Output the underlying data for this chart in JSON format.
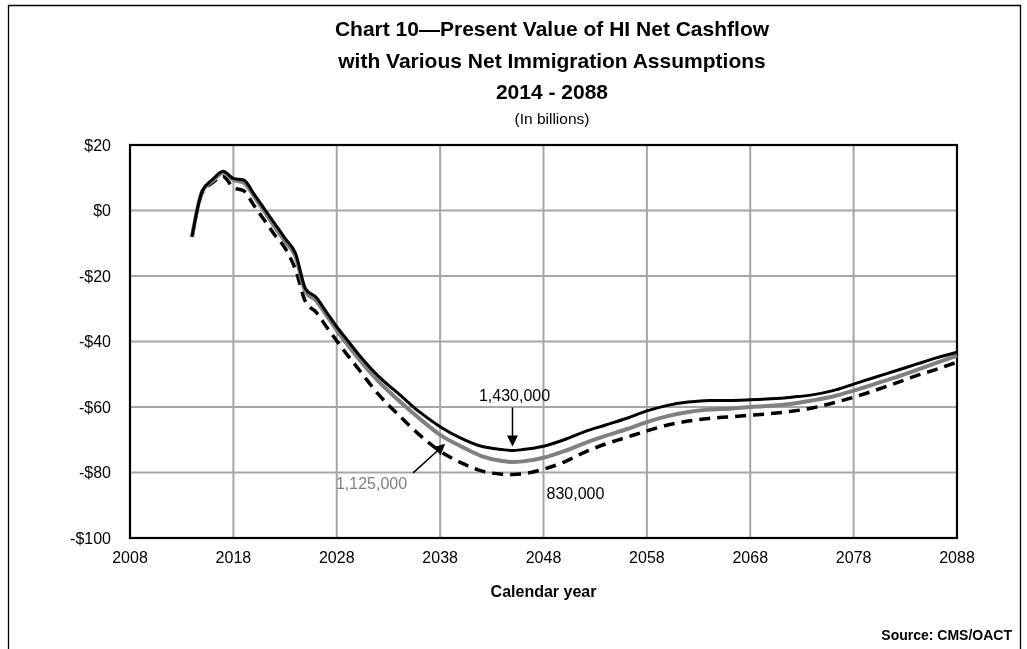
{
  "chart_data": {
    "type": "line",
    "title": "Chart 10—Present Value of HI Net Cashflow\nwith Various Net Immigration Assumptions\n2014 - 2088",
    "subtitle": "(In billions)",
    "xlabel": "Calendar year",
    "annotations": [
      "Source: CMS/OACT"
    ],
    "x": [
      2014,
      2015,
      2016,
      2017,
      2018,
      2019,
      2020,
      2021,
      2022,
      2023,
      2024,
      2025,
      2026,
      2027,
      2028,
      2029,
      2030,
      2032,
      2034,
      2036,
      2038,
      2040,
      2042,
      2044,
      2045,
      2046,
      2048,
      2050,
      2052,
      2054,
      2056,
      2058,
      2060,
      2062,
      2064,
      2066,
      2068,
      2070,
      2072,
      2074,
      2076,
      2078,
      2080,
      2082,
      2084,
      2086,
      2088
    ],
    "series": [
      {
        "name": "1,430,000",
        "color": "#000000",
        "line_style": "solid",
        "values": [
          -8,
          6,
          9.5,
          12,
          9.8,
          9.3,
          5,
          0.5,
          -4,
          -8.5,
          -13,
          -24,
          -26.5,
          -31,
          -35.5,
          -39.5,
          -43.5,
          -50.5,
          -56,
          -61.5,
          -66,
          -69.5,
          -72,
          -73,
          -73.3,
          -73,
          -72,
          -70,
          -67.5,
          -65.5,
          -63.5,
          -61.2,
          -59.5,
          -58.5,
          -58,
          -58,
          -57.8,
          -57.5,
          -57,
          -56.3,
          -55,
          -53,
          -51,
          -49,
          -47,
          -45,
          -43.3
        ]
      },
      {
        "name": "1,125,000",
        "color": "#808080",
        "line_style": "solid",
        "values": [
          -8,
          6,
          9,
          11.5,
          9.3,
          8.5,
          4.3,
          -0.3,
          -5,
          -9.5,
          -14,
          -25,
          -27.5,
          -32,
          -36.5,
          -40.8,
          -44.8,
          -52,
          -58,
          -63.5,
          -68.5,
          -72,
          -75,
          -76.5,
          -76.8,
          -76.6,
          -75.5,
          -73.5,
          -71,
          -68.8,
          -66.8,
          -64.6,
          -62.8,
          -61.5,
          -60.8,
          -60.5,
          -60,
          -59.6,
          -59,
          -58,
          -56.8,
          -55,
          -53,
          -51,
          -48.8,
          -46.5,
          -44.3
        ]
      },
      {
        "name": "830,000",
        "color": "#000000",
        "line_style": "dashed",
        "values": [
          -8,
          5.5,
          8.5,
          10.4,
          7,
          6,
          1.5,
          -3,
          -7.5,
          -11.5,
          -18,
          -28,
          -31,
          -35.5,
          -39.8,
          -44,
          -48,
          -56,
          -62.5,
          -68.5,
          -73.5,
          -77,
          -79.5,
          -80.5,
          -80.6,
          -80.4,
          -79,
          -76.8,
          -73.8,
          -71.3,
          -69.3,
          -67.3,
          -65.5,
          -64.3,
          -63.5,
          -63,
          -62.5,
          -62,
          -61.3,
          -60.3,
          -58.8,
          -57,
          -55,
          -52.8,
          -50.5,
          -48.5,
          -46.3
        ]
      }
    ],
    "xlim": [
      2008,
      2088
    ],
    "xticks": [
      2008,
      2018,
      2028,
      2038,
      2048,
      2058,
      2068,
      2078,
      2088
    ],
    "ylim": [
      -100,
      20
    ],
    "yticks": [
      {
        "value": -100,
        "label": "-$100"
      },
      {
        "value": -80,
        "label": "-$80"
      },
      {
        "value": -60,
        "label": "-$60"
      },
      {
        "value": -40,
        "label": "-$40"
      },
      {
        "value": -20,
        "label": "-$20"
      },
      {
        "value": 0,
        "label": "$0"
      },
      {
        "value": 20,
        "label": "$20"
      }
    ],
    "grid": true
  }
}
